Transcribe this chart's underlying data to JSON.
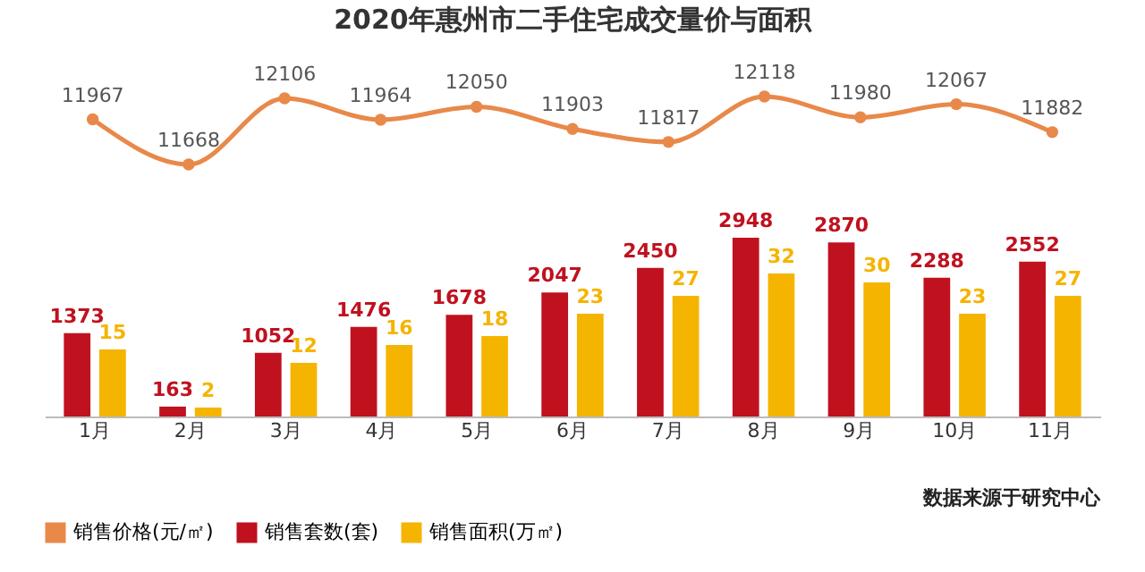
{
  "chart_data": [
    {
      "type": "line",
      "title": "2020年惠州市二手住宅成交量价与面积",
      "categories": [
        null,
        null,
        null,
        null,
        null,
        null,
        null,
        null,
        null,
        null,
        null
      ],
      "series": [
        {
          "name": "销售价格(元/㎡)",
          "color": "#e8894a",
          "values": [
            11967,
            11668,
            12106,
            11964,
            12050,
            11903,
            11817,
            12118,
            11980,
            12067,
            11882
          ]
        }
      ],
      "data_labels": true,
      "legend": "bottom",
      "marker": "circle",
      "tick_labels": false
    },
    {
      "type": "bar",
      "categories": [
        "1月",
        "2月",
        "3月",
        "4月",
        "5月",
        "6月",
        "7月",
        "8月",
        "9月",
        "10月",
        "11月"
      ],
      "series": [
        {
          "name": "销售套数(套)",
          "color": "#c0111f",
          "values": [
            1373,
            163,
            1052,
            1476,
            1678,
            2047,
            2450,
            2948,
            2870,
            2288,
            2552
          ]
        },
        {
          "name": "销售面积(万㎡)",
          "color": "#f5b400",
          "axis": "y2",
          "values": [
            15,
            2,
            12,
            16,
            18,
            23,
            27,
            32,
            30,
            23,
            27
          ]
        }
      ],
      "data_labels": true,
      "legend": "bottom",
      "tick_labels": "x",
      "annotations": [
        "数据来源于研究中心"
      ]
    }
  ]
}
